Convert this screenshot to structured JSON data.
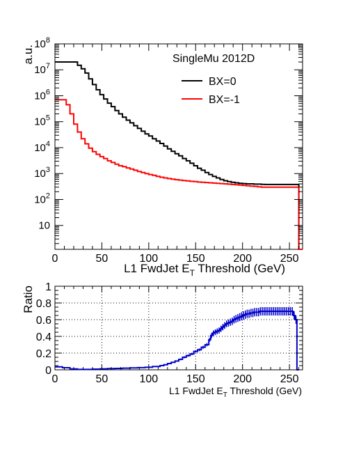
{
  "chart_data": [
    {
      "type": "line",
      "style": "step-histogram",
      "annotation": "SingleMu 2012D",
      "xlabel": "L1 FwdJet E",
      "xlabel_sub": "T",
      "xlabel_tail": " Threshold (GeV)",
      "ylabel": "a.u.",
      "xlim": [
        0,
        264
      ],
      "ylim": [
        1.2,
        100000000
      ],
      "yscale": "log",
      "x_ticks": [
        0,
        50,
        100,
        150,
        200,
        250
      ],
      "x_tick_labels": [
        "0",
        "50",
        "100",
        "150",
        "200",
        "250"
      ],
      "y_tick_labels": [
        {
          "value": 10,
          "base": "10",
          "exp": ""
        },
        {
          "value": 100,
          "base": "10",
          "exp": "2"
        },
        {
          "value": 1000,
          "base": "10",
          "exp": "3"
        },
        {
          "value": 10000,
          "base": "10",
          "exp": "4"
        },
        {
          "value": 100000,
          "base": "10",
          "exp": "5"
        },
        {
          "value": 1000000,
          "base": "10",
          "exp": "6"
        },
        {
          "value": 10000000,
          "base": "10",
          "exp": "7"
        },
        {
          "value": 100000000,
          "base": "10",
          "exp": "8"
        }
      ],
      "legend_position": "top-right",
      "series": [
        {
          "name": "BX=0",
          "color": "#000000",
          "x": [
            0,
            20,
            24,
            28,
            32,
            36,
            40,
            44,
            48,
            52,
            56,
            60,
            64,
            68,
            72,
            76,
            80,
            84,
            88,
            92,
            96,
            100,
            104,
            108,
            112,
            116,
            120,
            124,
            128,
            132,
            136,
            140,
            144,
            148,
            152,
            156,
            160,
            164,
            168,
            172,
            176,
            180,
            184,
            188,
            192,
            196,
            200,
            204,
            208,
            212,
            216,
            220,
            224,
            228,
            232,
            236,
            240,
            244,
            248,
            252,
            256,
            260
          ],
          "values": [
            20000000,
            20000000,
            15000000,
            11000000,
            7500000,
            4500000,
            2700000,
            1700000,
            1100000,
            750000,
            520000,
            380000,
            270000,
            200000,
            150000,
            115000,
            90000,
            70000,
            55000,
            43000,
            34000,
            28000,
            22000,
            18000,
            14500,
            11500,
            9000,
            7200,
            5800,
            4800,
            3800,
            3100,
            2500,
            2000,
            1600,
            1350,
            1100,
            920,
            780,
            680,
            590,
            530,
            490,
            460,
            440,
            420,
            410,
            400,
            400,
            390,
            390,
            385,
            380,
            380,
            380,
            380,
            380,
            380,
            380,
            380,
            380,
            1.2
          ]
        },
        {
          "name": "BX=-1",
          "color": "#ff0000",
          "x": [
            0,
            8,
            12,
            16,
            20,
            24,
            28,
            32,
            36,
            40,
            44,
            48,
            52,
            56,
            60,
            64,
            68,
            72,
            76,
            80,
            84,
            88,
            92,
            96,
            100,
            104,
            108,
            112,
            116,
            120,
            124,
            128,
            132,
            136,
            140,
            144,
            148,
            152,
            156,
            160,
            164,
            168,
            172,
            176,
            180,
            184,
            188,
            192,
            196,
            200,
            204,
            208,
            212,
            216,
            220,
            224,
            228,
            232,
            236,
            240,
            244,
            248,
            252,
            256,
            260
          ],
          "values": [
            700000,
            700000,
            450000,
            200000,
            80000,
            40000,
            22000,
            14000,
            9500,
            7000,
            5500,
            4500,
            3800,
            3100,
            2700,
            2300,
            2000,
            1850,
            1650,
            1500,
            1350,
            1200,
            1100,
            1000,
            920,
            850,
            780,
            720,
            680,
            640,
            610,
            580,
            560,
            540,
            520,
            500,
            490,
            470,
            460,
            450,
            440,
            430,
            420,
            410,
            400,
            390,
            380,
            370,
            360,
            350,
            340,
            330,
            320,
            310,
            300,
            300,
            300,
            300,
            300,
            300,
            300,
            300,
            300,
            300,
            1.2
          ]
        }
      ]
    },
    {
      "type": "line",
      "style": "step-histogram-with-errors",
      "xlabel": "L1 FwdJet E",
      "xlabel_sub": "T",
      "xlabel_tail": " Threshold (GeV)",
      "ylabel": "Ratio",
      "xlim": [
        0,
        264
      ],
      "ylim": [
        0,
        1
      ],
      "grid": true,
      "x_ticks": [
        0,
        50,
        100,
        150,
        200,
        250
      ],
      "x_tick_labels": [
        "0",
        "50",
        "100",
        "150",
        "200",
        "250"
      ],
      "y_ticks": [
        0,
        0.2,
        0.4,
        0.6,
        0.8,
        1
      ],
      "y_tick_labels": [
        "0",
        "0.2",
        "0.4",
        "0.6",
        "0.8",
        "1"
      ],
      "series": [
        {
          "color": "#0000cc",
          "x": [
            0,
            8,
            16,
            24,
            32,
            40,
            48,
            56,
            64,
            72,
            80,
            88,
            96,
            104,
            112,
            116,
            120,
            124,
            128,
            132,
            136,
            140,
            144,
            148,
            152,
            156,
            160,
            164,
            166,
            168,
            170,
            172,
            174,
            176,
            178,
            180,
            182,
            184,
            186,
            188,
            190,
            192,
            194,
            196,
            198,
            200,
            202,
            204,
            206,
            208,
            210,
            212,
            214,
            216,
            218,
            220,
            222,
            224,
            226,
            228,
            230,
            232,
            234,
            236,
            238,
            240,
            242,
            244,
            246,
            248,
            250,
            252,
            254,
            256,
            258
          ],
          "values": [
            0.035,
            0.025,
            0.01,
            0.005,
            0.005,
            0.008,
            0.012,
            0.015,
            0.017,
            0.02,
            0.023,
            0.026,
            0.03,
            0.04,
            0.05,
            0.06,
            0.075,
            0.09,
            0.105,
            0.125,
            0.15,
            0.17,
            0.19,
            0.22,
            0.24,
            0.27,
            0.3,
            0.36,
            0.41,
            0.44,
            0.45,
            0.46,
            0.47,
            0.49,
            0.51,
            0.53,
            0.55,
            0.56,
            0.57,
            0.58,
            0.6,
            0.61,
            0.62,
            0.63,
            0.64,
            0.65,
            0.66,
            0.67,
            0.67,
            0.68,
            0.68,
            0.69,
            0.69,
            0.69,
            0.7,
            0.7,
            0.7,
            0.7,
            0.7,
            0.7,
            0.7,
            0.7,
            0.7,
            0.7,
            0.7,
            0.7,
            0.7,
            0.7,
            0.7,
            0.7,
            0.7,
            0.7,
            0.65,
            0.6,
            0
          ],
          "errors": [
            0.004,
            0.003,
            0.002,
            0.002,
            0.002,
            0.002,
            0.002,
            0.002,
            0.002,
            0.003,
            0.003,
            0.003,
            0.004,
            0.005,
            0.006,
            0.007,
            0.008,
            0.009,
            0.01,
            0.011,
            0.012,
            0.013,
            0.014,
            0.015,
            0.016,
            0.018,
            0.02,
            0.022,
            0.03,
            0.032,
            0.034,
            0.035,
            0.036,
            0.037,
            0.038,
            0.04,
            0.04,
            0.042,
            0.043,
            0.044,
            0.045,
            0.046,
            0.047,
            0.048,
            0.049,
            0.05,
            0.05,
            0.05,
            0.05,
            0.05,
            0.05,
            0.05,
            0.05,
            0.05,
            0.05,
            0.05,
            0.05,
            0.05,
            0.05,
            0.05,
            0.05,
            0.05,
            0.05,
            0.05,
            0.05,
            0.05,
            0.05,
            0.05,
            0.05,
            0.05,
            0.05,
            0.05,
            0.05,
            0.05,
            0
          ]
        }
      ]
    }
  ]
}
